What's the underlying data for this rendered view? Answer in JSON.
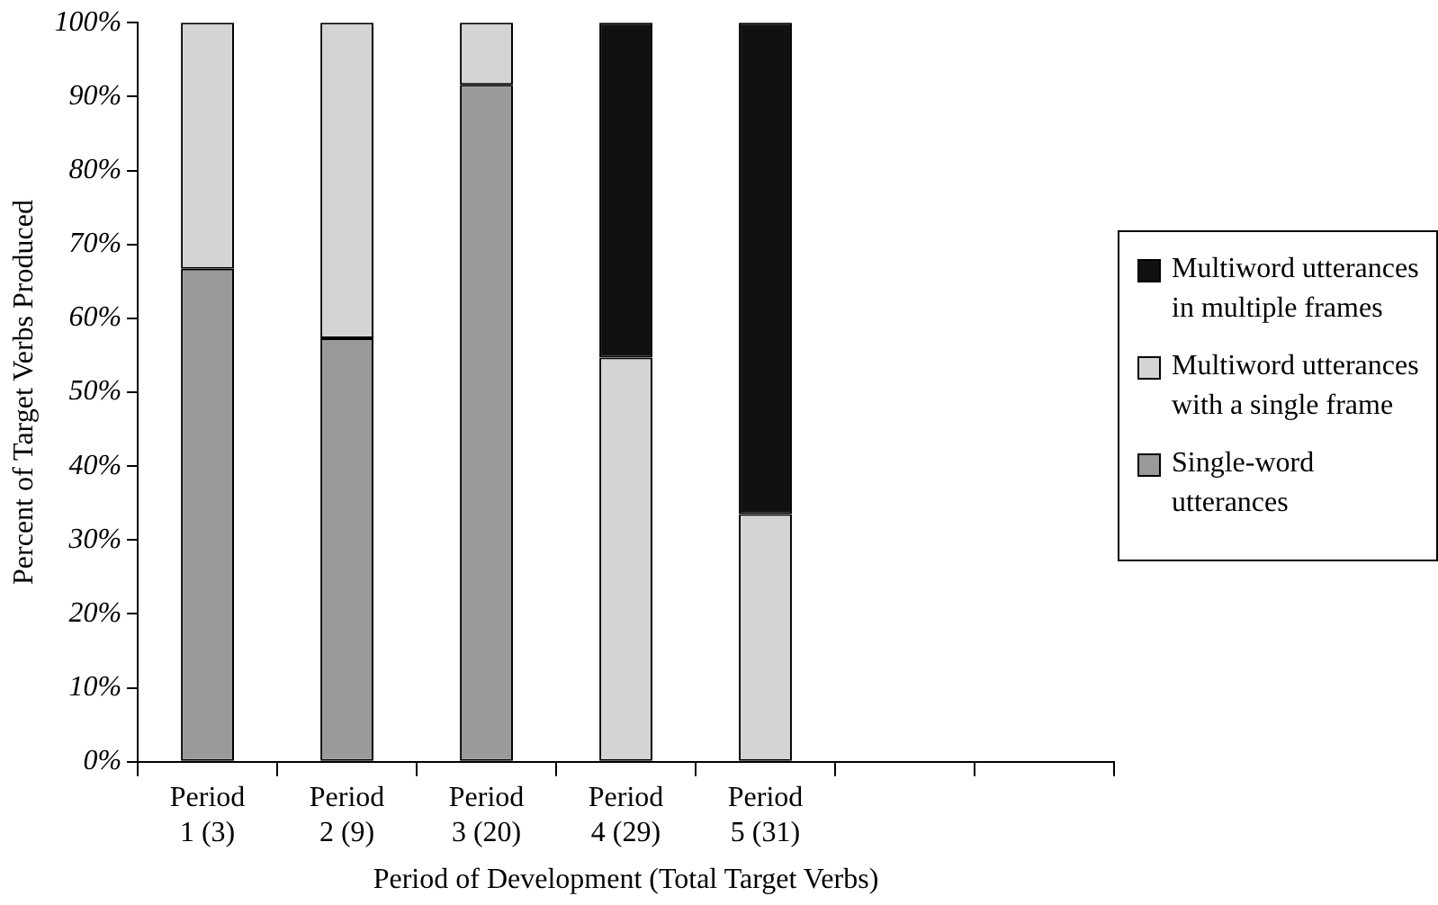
{
  "chart_data": {
    "type": "bar",
    "stacked": true,
    "xlabel": "Period of Development (Total Target Verbs)",
    "ylabel": "Percent of Target Verbs Produced",
    "categories": [
      "Period 1 (3)",
      "Period 2 (9)",
      "Period 3 (20)",
      "Period 4 (29)",
      "Period 5 (31)",
      null,
      null
    ],
    "series": [
      {
        "name": "Single-word utterances",
        "color": "#9a9a9a",
        "values": [
          66.7,
          57.3,
          91.6,
          0,
          0,
          null,
          null
        ]
      },
      {
        "name": "Multiword utterances with a single frame",
        "color": "#d4d4d4",
        "values": [
          33.3,
          42.7,
          8.4,
          54.7,
          33.5,
          null,
          null
        ]
      },
      {
        "name": "Multiword utterances in multiple frames",
        "color": "#111111",
        "values": [
          0,
          0,
          0,
          45.3,
          66.5,
          null,
          null
        ]
      }
    ],
    "ylim": [
      0,
      100
    ],
    "yticks": [
      {
        "value": 0,
        "label": "0%"
      },
      {
        "value": 10,
        "label": "10%"
      },
      {
        "value": 20,
        "label": "20%"
      },
      {
        "value": 30,
        "label": "30%"
      },
      {
        "value": 40,
        "label": "40%"
      },
      {
        "value": 50,
        "label": "50%"
      },
      {
        "value": 60,
        "label": "60%"
      },
      {
        "value": 70,
        "label": "70%"
      },
      {
        "value": 80,
        "label": "80%"
      },
      {
        "value": 90,
        "label": "90%"
      },
      {
        "value": 100,
        "label": "100%"
      }
    ],
    "grid": false,
    "legend": "right"
  }
}
